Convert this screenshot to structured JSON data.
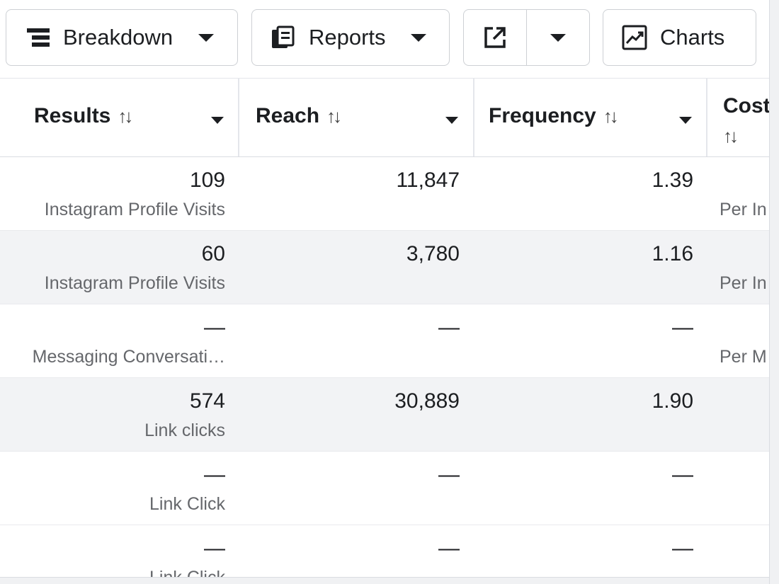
{
  "toolbar": {
    "breakdown": {
      "label": "Breakdown",
      "icon": "breakdown-icon"
    },
    "reports": {
      "label": "Reports",
      "icon": "reports-icon"
    },
    "export": {
      "icon": "export-icon"
    },
    "charts": {
      "label": "Charts",
      "icon": "charts-icon"
    }
  },
  "columns": [
    {
      "key": "results",
      "label": "Results",
      "sort_icon": "↑↓"
    },
    {
      "key": "reach",
      "label": "Reach",
      "sort_icon": "↑↓"
    },
    {
      "key": "frequency",
      "label": "Frequency",
      "sort_icon": "↑↓"
    },
    {
      "key": "cost",
      "label": "Cost",
      "sort_icon": "↑↓"
    }
  ],
  "rows": [
    {
      "results": "109",
      "results_sub": "Instagram Profile Visits",
      "reach": "11,847",
      "frequency": "1.39",
      "cost_sub": "Per In"
    },
    {
      "results": "60",
      "results_sub": "Instagram Profile Visits",
      "reach": "3,780",
      "frequency": "1.16",
      "cost_sub": "Per In"
    },
    {
      "results": "—",
      "results_sub": "Messaging Conversati…",
      "reach": "—",
      "frequency": "—",
      "cost_sub": "Per M"
    },
    {
      "results": "574",
      "results_sub": "Link clicks",
      "reach": "30,889",
      "frequency": "1.90",
      "cost_sub": ""
    },
    {
      "results": "—",
      "results_sub": "Link Click",
      "reach": "—",
      "frequency": "—",
      "cost_sub": ""
    },
    {
      "results": "—",
      "results_sub": "Link Click",
      "reach": "—",
      "frequency": "—",
      "cost_sub": ""
    }
  ],
  "colors": {
    "border": "#cdd0d4",
    "alt_row": "#f2f3f5",
    "text": "#1c1e21",
    "muted": "#65676b"
  }
}
